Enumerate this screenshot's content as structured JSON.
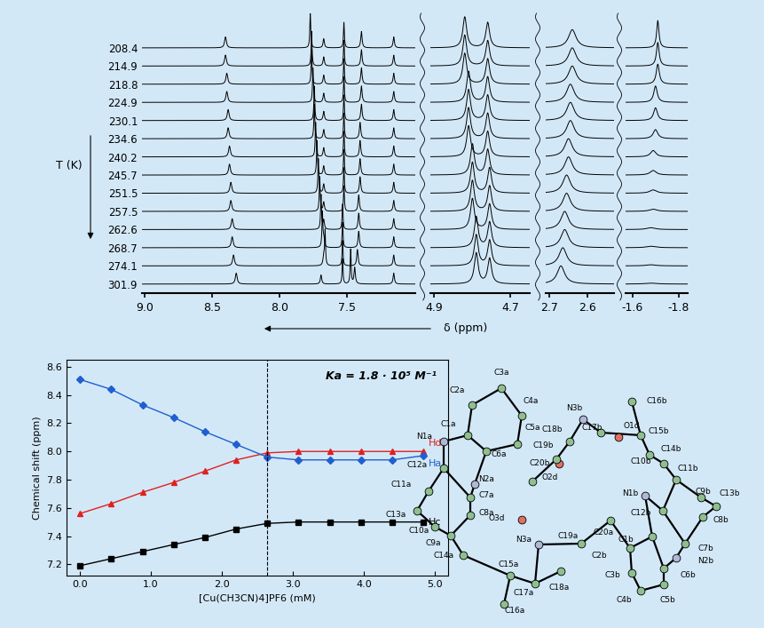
{
  "chart_data": [
    {
      "type": "spectra",
      "xlabel": "δ (ppm)",
      "ylabel": "T (K)",
      "color": "#000000",
      "temperatures": [
        208.4,
        214.9,
        218.8,
        224.9,
        230.1,
        234.6,
        240.2,
        245.7,
        251.5,
        257.5,
        262.6,
        268.7,
        274.1,
        301.9
      ],
      "segments": [
        {
          "xlim": [
            9.02,
            6.99
          ],
          "xticks": [
            9.0,
            8.5,
            8.0,
            7.5
          ],
          "peaks": [
            {
              "delta": [
                8.4,
                8.4,
                8.39,
                8.39,
                8.38,
                8.38,
                8.37,
                8.37,
                8.36,
                8.36,
                8.35,
                8.35,
                8.34,
                8.32
              ],
              "height": 0.6,
              "width": 0.008
            },
            {
              "delta": [
                7.77,
                7.76,
                7.76,
                7.75,
                7.74,
                7.74,
                7.73,
                7.72,
                7.71,
                7.7,
                7.69,
                7.68,
                7.66,
                7.47
              ],
              "height": 1.9,
              "width": 0.004
            },
            {
              "delta": [
                7.67,
                7.67,
                7.67,
                7.67,
                7.67,
                7.67,
                7.67,
                7.67,
                7.67,
                7.67,
                7.67,
                7.67,
                7.67,
                7.69
              ],
              "height": 0.5,
              "width": 0.006
            },
            {
              "delta": [
                7.52,
                7.52,
                7.52,
                7.52,
                7.52,
                7.52,
                7.52,
                7.52,
                7.52,
                7.52,
                7.53,
                7.53,
                7.53,
                7.53
              ],
              "height": 1.4,
              "width": 0.004
            },
            {
              "delta": [
                7.39,
                7.39,
                7.39,
                7.39,
                7.39,
                7.4,
                7.4,
                7.4,
                7.4,
                7.41,
                7.41,
                7.41,
                7.42,
                7.44
              ],
              "height": 0.9,
              "width": 0.006
            },
            {
              "delta": 7.15,
              "height": 0.6,
              "width": 0.006
            }
          ]
        },
        {
          "xlim": [
            4.91,
            4.65
          ],
          "xticks": [
            4.9,
            4.7
          ],
          "peaks": [
            {
              "delta": [
                4.82,
                4.82,
                4.82,
                4.81,
                4.81,
                4.81,
                4.81,
                4.8,
                4.8,
                4.8,
                4.8,
                4.79,
                4.79,
                4.79
              ],
              "height": 1.7,
              "width": 0.006
            },
            {
              "delta": [
                4.76,
                4.76,
                4.76,
                4.76,
                4.76,
                4.76,
                4.76,
                4.76,
                4.755,
                4.755,
                4.755,
                4.755,
                4.755,
                4.755
              ],
              "height": 1.4,
              "width": 0.006
            }
          ]
        },
        {
          "xlim": [
            2.71,
            2.53
          ],
          "xticks": [
            2.7,
            2.6
          ],
          "peaks": [
            {
              "delta": [
                2.64,
                2.64,
                2.64,
                2.645,
                2.645,
                2.645,
                2.65,
                2.65,
                2.655,
                2.655,
                2.66,
                2.66,
                2.665,
                2.67
              ],
              "height": 1.0,
              "width": 0.012
            }
          ]
        },
        {
          "xlim": [
            -1.57,
            -1.84
          ],
          "xticks": [
            -1.6,
            -1.8
          ],
          "peaks": [
            {
              "delta": [
                -1.71,
                -1.71,
                -1.71,
                -1.7,
                -1.7,
                -1.7,
                -1.69,
                -1.69,
                -1.69,
                -1.69,
                -1.68,
                -1.68,
                -1.68,
                -1.68
              ],
              "height": [
                1.5,
                1.3,
                1.1,
                0.9,
                0.7,
                0.5,
                0.35,
                0.25,
                0.18,
                0.12,
                0.1,
                0.08,
                0.06,
                0.05
              ],
              "width": [
                0.006,
                0.007,
                0.008,
                0.009,
                0.01,
                0.012,
                0.014,
                0.016,
                0.018,
                0.02,
                0.022,
                0.024,
                0.026,
                0.03
              ]
            }
          ]
        }
      ]
    },
    {
      "type": "line",
      "xlabel": "[Cu(CH3CN)4]PF6 (mM)",
      "ylabel": "Chemical shift (ppm)",
      "annotation": "Ka = 1.8 · 10⁵ M⁻¹",
      "line_style": "solid",
      "x": [
        0.0,
        0.44,
        0.88,
        1.32,
        1.76,
        2.2,
        2.64,
        3.08,
        3.52,
        3.96,
        4.4,
        4.84
      ],
      "series": [
        {
          "name": "Hd",
          "color": "#e02020",
          "marker": "triangle",
          "values": [
            7.56,
            7.63,
            7.71,
            7.78,
            7.86,
            7.94,
            7.99,
            8.0,
            8.0,
            8.0,
            8.0,
            8.0
          ]
        },
        {
          "name": "Ha",
          "color": "#1f5fd0",
          "marker": "diamond",
          "values": [
            8.51,
            8.44,
            8.33,
            8.24,
            8.14,
            8.05,
            7.96,
            7.94,
            7.94,
            7.94,
            7.94,
            7.97
          ]
        },
        {
          "name": "Hc",
          "color": "#000000",
          "marker": "square",
          "values": [
            7.19,
            7.24,
            7.29,
            7.34,
            7.39,
            7.45,
            7.49,
            7.5,
            7.5,
            7.5,
            7.5,
            7.5
          ]
        }
      ],
      "vline": 2.64,
      "xlim": [
        -0.19,
        5.19
      ],
      "xticks": [
        0.0,
        1.0,
        2.0,
        3.0,
        4.0,
        5.0
      ],
      "ylim": [
        7.12,
        8.65
      ],
      "yticks": [
        7.2,
        7.4,
        7.6,
        7.8,
        8.0,
        8.2,
        8.4,
        8.6
      ]
    }
  ],
  "diagram": {
    "atoms": [
      "C3a",
      "C2a",
      "C4a",
      "C1a",
      "C5a",
      "N1a",
      "C6a",
      "N2a",
      "C12a",
      "C7a",
      "C11a",
      "C8a",
      "C13a",
      "C10a",
      "C9a",
      "C14a",
      "C15a",
      "C16a",
      "C17a",
      "C18a",
      "N3a",
      "C19a",
      "C20a",
      "O3d",
      "O2d",
      "O1d",
      "C17b",
      "N3b",
      "C18b",
      "C19b",
      "C20b",
      "C16b",
      "C15b",
      "C14b",
      "C10b",
      "C11b",
      "C9b",
      "C13b",
      "C8b",
      "N1b",
      "C12b",
      "C7b",
      "N2b",
      "C1b",
      "C2b",
      "C6b",
      "C3b",
      "C4b",
      "C5b"
    ]
  }
}
